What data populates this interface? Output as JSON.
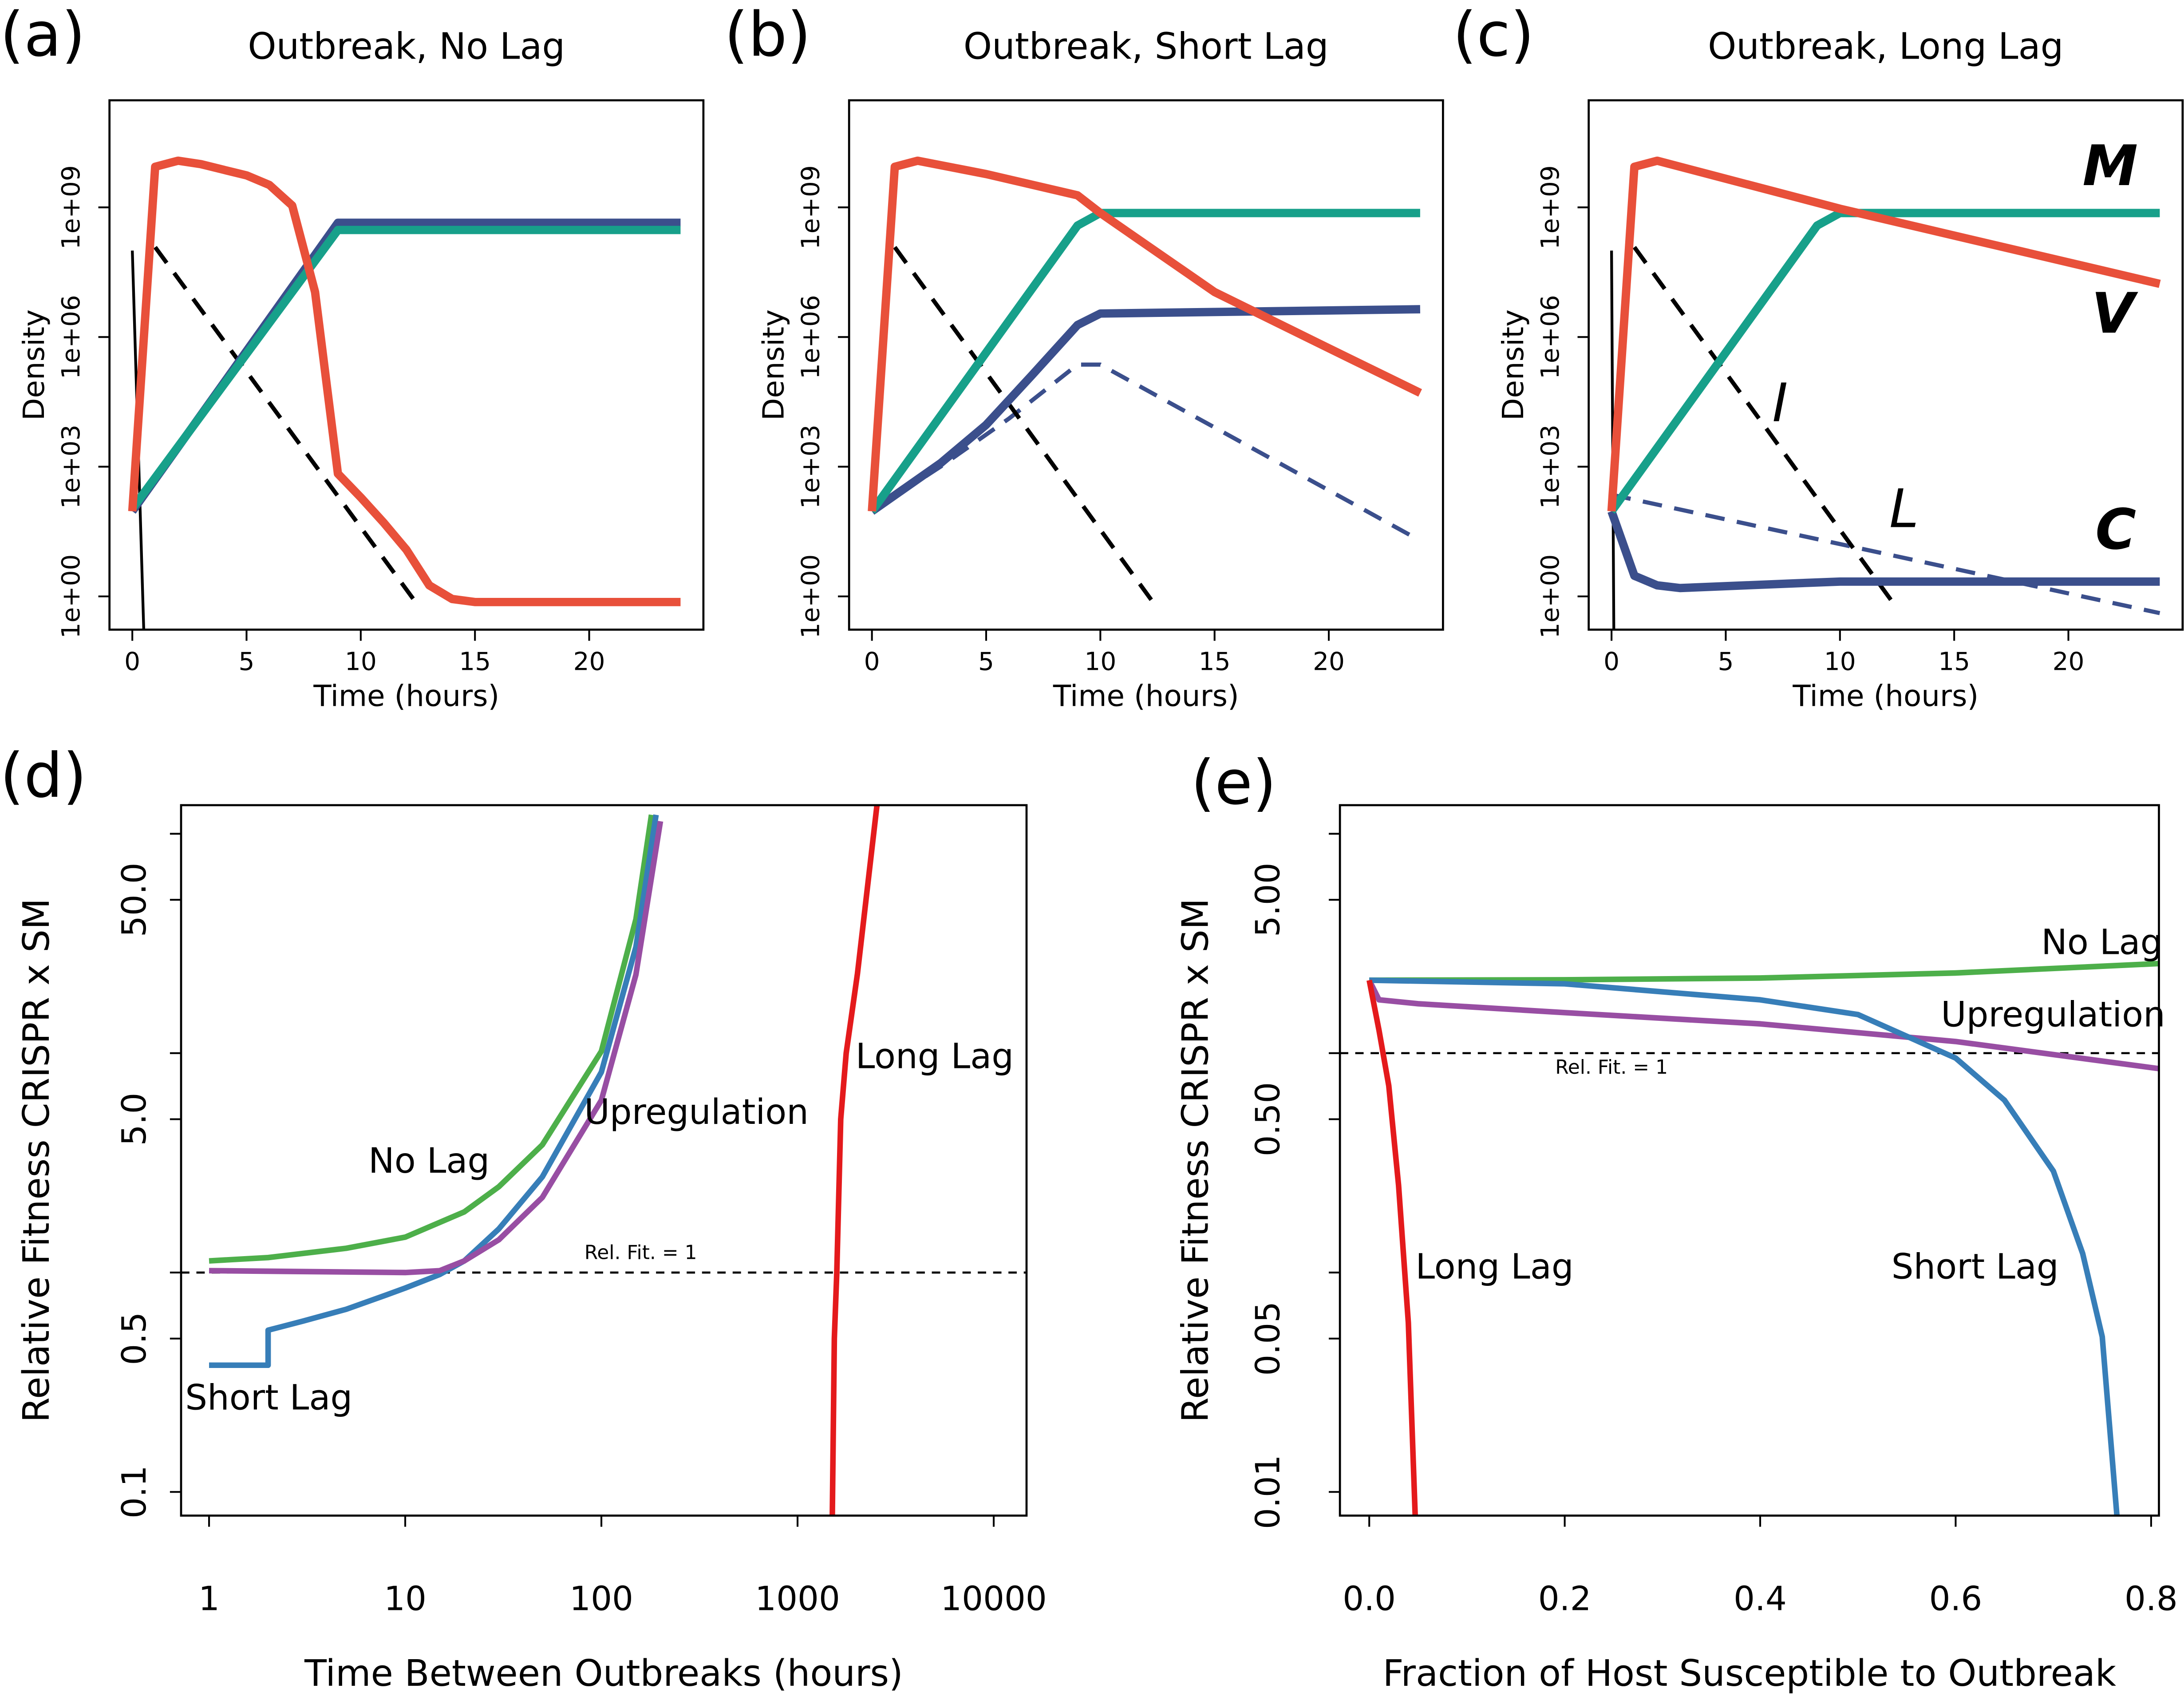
{
  "chart_data": [
    {
      "type": "line",
      "label": "(a)",
      "title": "Outbreak, No Lag",
      "xlabel": "Time (hours)",
      "ylabel": "Density",
      "xlim": [
        -1,
        25
      ],
      "ylim": [
        0.17,
        300000000000
      ],
      "ylog": true,
      "xticks": [
        0,
        5,
        10,
        15,
        20
      ],
      "yticks": [
        {
          "value": 1,
          "label": "1e+00"
        },
        {
          "value": 1000,
          "label": "1e+03"
        },
        {
          "value": 1000000,
          "label": "1e+06"
        },
        {
          "value": 1000000000,
          "label": "1e+09"
        }
      ],
      "series": [
        {
          "color": "#000000",
          "linewidth": 2,
          "x": [
            0,
            0.5
          ],
          "values": [
            100000000,
            0.17
          ]
        },
        {
          "color": "#000000",
          "linewidth": 3,
          "linestyle": "dashed",
          "x": [
            1,
            12.4
          ],
          "values": [
            120000000,
            0.74
          ]
        },
        {
          "color": "#3b4f8c",
          "linewidth": 6,
          "x": [
            0,
            9,
            24
          ],
          "values": [
            93,
            440000000,
            440000000
          ]
        },
        {
          "color": "#17a08a",
          "linewidth": 6,
          "x": [
            0,
            9,
            24
          ],
          "values": [
            107,
            300000000,
            300000000
          ]
        },
        {
          "color": "#e8503a",
          "linewidth": 6,
          "x": [
            0,
            1,
            2,
            3,
            4,
            5,
            6,
            7,
            8,
            9,
            10,
            11,
            12,
            13,
            14,
            15,
            16,
            24
          ],
          "values": [
            93,
            8700000000,
            12000000000,
            10000000000,
            7400000000,
            5500000000,
            3300000000,
            1100000000,
            11000000,
            690,
            195,
            51,
            12,
            1.8,
            0.87,
            0.74,
            0.74,
            0.74
          ]
        }
      ]
    },
    {
      "type": "line",
      "label": "(b)",
      "title": "Outbreak, Short Lag",
      "xlabel": "Time (hours)",
      "ylabel": "Density",
      "xlim": [
        -1,
        25
      ],
      "ylim": [
        0.17,
        300000000000
      ],
      "ylog": true,
      "xticks": [
        0,
        5,
        10,
        15,
        20
      ],
      "yticks": [
        {
          "value": 1,
          "label": "1e+00"
        },
        {
          "value": 1000,
          "label": "1e+03"
        },
        {
          "value": 1000000,
          "label": "1e+06"
        },
        {
          "value": 1000000000,
          "label": "1e+09"
        }
      ],
      "series": [
        {
          "color": "#3b4f8c",
          "linewidth": 3,
          "linestyle": "dashed",
          "x": [
            0,
            3,
            6,
            9,
            10,
            24
          ],
          "values": [
            93,
            1000,
            13000,
            230000,
            230000,
            19.5
          ]
        },
        {
          "color": "#000000",
          "linewidth": 3,
          "linestyle": "dashed",
          "x": [
            1,
            12.3
          ],
          "values": [
            120000000,
            0.74
          ]
        },
        {
          "color": "#3b4f8c",
          "linewidth": 6,
          "x": [
            0,
            3,
            5,
            7,
            9,
            10,
            24
          ],
          "values": [
            93,
            1200,
            9300,
            130000,
            1900000,
            3500000,
            4400000
          ]
        },
        {
          "color": "#17a08a",
          "linewidth": 6,
          "x": [
            0,
            9,
            10,
            24
          ],
          "values": [
            93,
            380000000,
            740000000,
            740000000
          ]
        },
        {
          "color": "#e8503a",
          "linewidth": 6,
          "x": [
            0,
            1,
            2,
            5,
            9,
            10,
            15,
            20,
            24
          ],
          "values": [
            93,
            8700000000,
            12000000000,
            5900000000,
            1900000000,
            740000000,
            11000000,
            550000,
            51000
          ]
        }
      ]
    },
    {
      "type": "line",
      "label": "(c)",
      "title": "Outbreak, Long Lag",
      "xlabel": "Time (hours)",
      "ylabel": "Density",
      "xlim": [
        -1,
        25
      ],
      "ylim": [
        0.17,
        300000000000
      ],
      "ylog": true,
      "xticks": [
        0,
        5,
        10,
        15,
        20
      ],
      "yticks": [
        {
          "value": 1,
          "label": "1e+00"
        },
        {
          "value": 1000,
          "label": "1e+03"
        },
        {
          "value": 1000000,
          "label": "1e+06"
        },
        {
          "value": 1000000000,
          "label": "1e+09"
        }
      ],
      "series": [
        {
          "color": "#000000",
          "linewidth": 2,
          "x": [
            0,
            0.1
          ],
          "values": [
            100000000,
            0.17
          ]
        },
        {
          "name": "L",
          "color": "#3b4f8c",
          "linewidth": 3,
          "linestyle": "dashed",
          "x": [
            0,
            24
          ],
          "values": [
            225,
            0.41
          ]
        },
        {
          "name": "I",
          "color": "#000000",
          "linewidth": 3,
          "linestyle": "dashed",
          "x": [
            1,
            12.3
          ],
          "values": [
            120000000,
            0.74
          ]
        },
        {
          "name": "C",
          "color": "#3b4f8c",
          "linewidth": 6,
          "x": [
            0,
            1,
            2,
            3,
            8,
            10,
            24
          ],
          "values": [
            93,
            3,
            1.8,
            1.56,
            2,
            2.2,
            2.2
          ]
        },
        {
          "name": "M",
          "color": "#17a08a",
          "linewidth": 6,
          "x": [
            0,
            9,
            10,
            24
          ],
          "values": [
            93,
            380000000,
            740000000,
            740000000
          ]
        },
        {
          "name": "V",
          "color": "#e8503a",
          "linewidth": 6,
          "x": [
            0,
            1,
            2,
            10,
            24
          ],
          "values": [
            93,
            8700000000,
            12000000000,
            930000000,
            17000000
          ]
        }
      ]
    },
    {
      "type": "line",
      "label": "(d)",
      "xlabel": "Time Between Outbreaks (hours)",
      "ylabel": "Relative Fitness CRISPR x SM",
      "xlim": [
        0.72,
        14700
      ],
      "ylim": [
        0.078,
        135
      ],
      "xlog": true,
      "ylog": true,
      "xticks": [
        1,
        10,
        100,
        1000,
        10000
      ],
      "yticks": [
        0.1,
        0.5,
        {
          "value": 1,
          "label": null
        },
        {
          "value": 5,
          "label": "5.0"
        },
        {
          "value": 10,
          "label": null
        },
        {
          "value": 50,
          "label": "50.0"
        },
        {
          "value": 100,
          "label": null
        }
      ],
      "hline": {
        "value": 1,
        "label": "Rel. Fit. = 1"
      },
      "series": [
        {
          "name": "No Lag",
          "color": "#4daf4a",
          "linewidth": 4,
          "x": [
            1,
            2,
            5,
            10,
            20,
            30,
            50,
            100,
            150,
            180
          ],
          "values": [
            1.13,
            1.17,
            1.29,
            1.45,
            1.89,
            2.46,
            3.82,
            10.2,
            40.8,
            122
          ]
        },
        {
          "name": "Short Lag",
          "color": "#377eb8",
          "linewidth": 4,
          "x": [
            1,
            2,
            2,
            3,
            5,
            8,
            10,
            15,
            20,
            30,
            50,
            100,
            150,
            190
          ],
          "values": [
            0.378,
            0.378,
            0.546,
            0.6,
            0.68,
            0.79,
            0.85,
            0.98,
            1.13,
            1.58,
            2.73,
            8.2,
            30.5,
            122
          ]
        },
        {
          "name": "Upregulation",
          "color": "#984ea3",
          "linewidth": 4,
          "x": [
            1,
            10,
            15,
            20,
            30,
            50,
            100,
            150,
            200
          ],
          "values": [
            1.02,
            1,
            1.02,
            1.13,
            1.41,
            2.2,
            6.1,
            22.8,
            114
          ]
        },
        {
          "name": "Long Lag",
          "color": "#e41a1c",
          "linewidth": 4,
          "x": [
            1504,
            1540,
            1585,
            1660,
            1770,
            2020,
            2540
          ],
          "values": [
            0.078,
            0.5,
            1,
            5,
            10,
            23,
            135
          ]
        }
      ]
    },
    {
      "type": "line",
      "label": "(e)",
      "xlabel": "Fraction of Host Susceptible to Outbreak",
      "ylabel": "Relative Fitness CRISPR x SM",
      "xlim": [
        -0.03,
        0.808
      ],
      "ylim": [
        0.0078,
        13.5
      ],
      "ylog": true,
      "xticks": [
        {
          "value": 0,
          "label": "0.0"
        },
        0.2,
        0.4,
        0.6,
        0.8
      ],
      "yticks": [
        0.01,
        0.05,
        {
          "value": 0.1,
          "label": null
        },
        {
          "value": 0.5,
          "label": "0.50"
        },
        {
          "value": 1,
          "label": null
        },
        {
          "value": 5,
          "label": "5.00"
        },
        {
          "value": 10,
          "label": null
        }
      ],
      "hline": {
        "value": 1,
        "label": "Rel. Fit. = 1"
      },
      "series": [
        {
          "name": "No Lag",
          "color": "#4daf4a",
          "linewidth": 4,
          "x": [
            0,
            0.2,
            0.4,
            0.6,
            0.808
          ],
          "values": [
            2.15,
            2.16,
            2.2,
            2.32,
            2.56
          ]
        },
        {
          "name": "Upregulation",
          "color": "#984ea3",
          "linewidth": 4,
          "x": [
            0,
            0.01,
            0.05,
            0.2,
            0.4,
            0.6,
            0.808
          ],
          "values": [
            2.15,
            1.75,
            1.68,
            1.53,
            1.36,
            1.13,
            0.85
          ]
        },
        {
          "name": "Short Lag",
          "color": "#377eb8",
          "linewidth": 4,
          "x": [
            0,
            0.2,
            0.4,
            0.5,
            0.6,
            0.65,
            0.7,
            0.73,
            0.75,
            0.765
          ],
          "values": [
            2.15,
            2.07,
            1.75,
            1.5,
            0.95,
            0.61,
            0.29,
            0.122,
            0.051,
            0.0078
          ]
        },
        {
          "name": "Long Lag",
          "color": "#e41a1c",
          "linewidth": 4,
          "x": [
            0,
            0.01,
            0.02,
            0.03,
            0.04,
            0.047
          ],
          "values": [
            2.15,
            1.27,
            0.71,
            0.25,
            0.059,
            0.0078
          ]
        }
      ]
    }
  ]
}
